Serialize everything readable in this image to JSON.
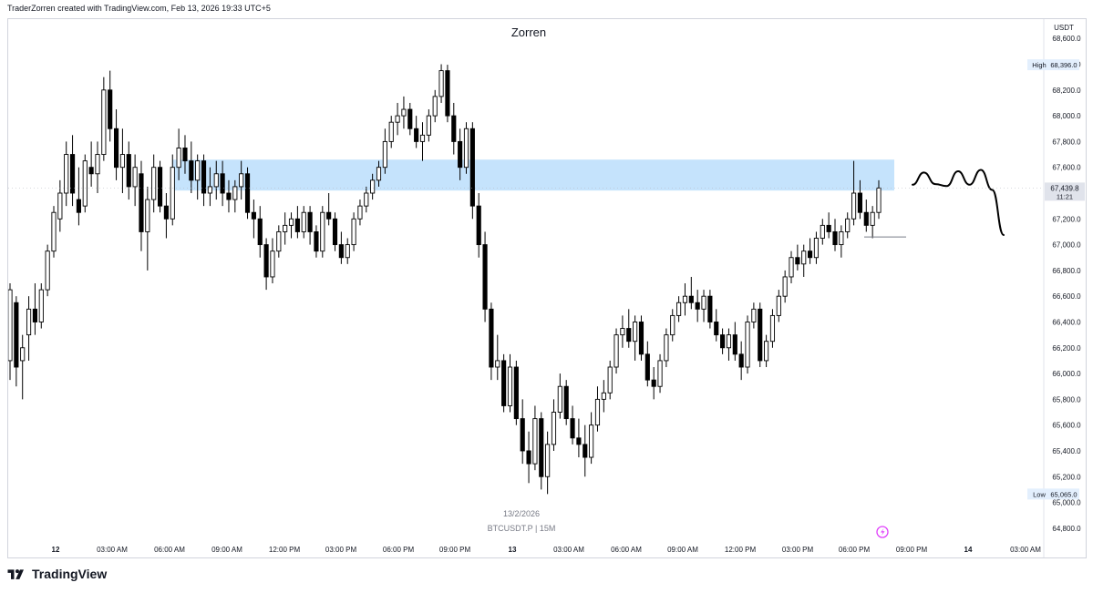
{
  "header": {
    "credit": "TraderZorren created with TradingView.com, Feb 13, 2026 19:33 UTC+5"
  },
  "footer": {
    "logo_icon": "tradingview-logo-icon",
    "brand": "TradingView"
  },
  "chart_data": {
    "type": "candlestick",
    "title": "Zorren",
    "symbol_caption": "BTCUSDT.P | 15M",
    "currency": "USDT",
    "date_label": "13/2/2026",
    "ylim": [
      64700,
      68750
    ],
    "y_ticks": [
      "68,600.0",
      "68,400.0",
      "68,200.0",
      "68,000.0",
      "67,800.0",
      "67,600.0",
      "67,400.0",
      "67,200.0",
      "67,000.0",
      "66,800.0",
      "66,600.0",
      "66,400.0",
      "66,200.0",
      "66,000.0",
      "65,800.0",
      "65,600.0",
      "65,400.0",
      "65,200.0",
      "65,000.0",
      "64,800.0"
    ],
    "x_ticks": [
      "12",
      "03:00 AM",
      "06:00 AM",
      "09:00 AM",
      "12:00 PM",
      "03:00 PM",
      "06:00 PM",
      "09:00 PM",
      "13",
      "03:00 AM",
      "06:00 AM",
      "09:00 AM",
      "12:00 PM",
      "03:00 PM",
      "06:00 PM",
      "09:00 PM",
      "14",
      "03:00 AM"
    ],
    "high_marker": {
      "label": "High",
      "value": "68,396.0",
      "price": 68396
    },
    "low_marker": {
      "label": "Low",
      "value": "65,065.0",
      "price": 65065
    },
    "last_price": {
      "value": "67,439.8",
      "countdown": "11:21",
      "price": 67439.8
    },
    "zone": {
      "from": 67420,
      "to": 67660,
      "color": "#bbdefb"
    },
    "up_color": "#ffffff",
    "down_color": "#000000",
    "grid": false,
    "series_15m_ohlc": [
      [
        66100,
        66700,
        65950,
        66650
      ],
      [
        66550,
        66600,
        65900,
        66050
      ],
      [
        66100,
        66300,
        65800,
        66200
      ],
      [
        66300,
        66600,
        66100,
        66500
      ],
      [
        66500,
        66700,
        66300,
        66400
      ],
      [
        66400,
        66700,
        66350,
        66650
      ],
      [
        66650,
        67000,
        66600,
        66950
      ],
      [
        66950,
        67300,
        66900,
        67250
      ],
      [
        67200,
        67500,
        67100,
        67400
      ],
      [
        67400,
        67800,
        67300,
        67700
      ],
      [
        67700,
        67850,
        67300,
        67400
      ],
      [
        67350,
        67600,
        67150,
        67250
      ],
      [
        67300,
        67700,
        67250,
        67650
      ],
      [
        67600,
        67800,
        67450,
        67550
      ],
      [
        67550,
        67800,
        67400,
        67700
      ],
      [
        67700,
        68300,
        67650,
        68200
      ],
      [
        68200,
        68350,
        67800,
        67900
      ],
      [
        67900,
        68050,
        67500,
        67600
      ],
      [
        67600,
        67900,
        67400,
        67700
      ],
      [
        67700,
        67800,
        67350,
        67450
      ],
      [
        67450,
        67700,
        67300,
        67600
      ],
      [
        67550,
        67650,
        66950,
        67100
      ],
      [
        67100,
        67450,
        66800,
        67350
      ],
      [
        67350,
        67700,
        67250,
        67600
      ],
      [
        67600,
        67650,
        67250,
        67300
      ],
      [
        67300,
        67400,
        67050,
        67200
      ],
      [
        67200,
        67700,
        67150,
        67600
      ],
      [
        67600,
        67900,
        67500,
        67750
      ],
      [
        67750,
        67850,
        67550,
        67650
      ],
      [
        67650,
        67800,
        67400,
        67500
      ],
      [
        67500,
        67700,
        67350,
        67650
      ],
      [
        67650,
        67700,
        67300,
        67400
      ],
      [
        67400,
        67600,
        67300,
        67450
      ],
      [
        67450,
        67650,
        67350,
        67550
      ],
      [
        67550,
        67650,
        67300,
        67400
      ],
      [
        67400,
        67500,
        67250,
        67350
      ],
      [
        67350,
        67500,
        67250,
        67450
      ],
      [
        67450,
        67650,
        67350,
        67550
      ],
      [
        67550,
        67600,
        67200,
        67250
      ],
      [
        67250,
        67350,
        67050,
        67200
      ],
      [
        67200,
        67300,
        66900,
        67000
      ],
      [
        67000,
        67050,
        66650,
        66750
      ],
      [
        66750,
        67050,
        66700,
        66950
      ],
      [
        66950,
        67150,
        66900,
        67100
      ],
      [
        67100,
        67250,
        67000,
        67150
      ],
      [
        67150,
        67250,
        67050,
        67200
      ],
      [
        67200,
        67300,
        67050,
        67100
      ],
      [
        67100,
        67300,
        67050,
        67250
      ],
      [
        67250,
        67300,
        67000,
        67100
      ],
      [
        67100,
        67150,
        66900,
        66950
      ],
      [
        66950,
        67300,
        66900,
        67250
      ],
      [
        67250,
        67400,
        67150,
        67200
      ],
      [
        67200,
        67250,
        66950,
        67000
      ],
      [
        67000,
        67100,
        66850,
        66900
      ],
      [
        66900,
        67050,
        66850,
        67000
      ],
      [
        67000,
        67250,
        66950,
        67200
      ],
      [
        67200,
        67350,
        67150,
        67300
      ],
      [
        67300,
        67450,
        67250,
        67400
      ],
      [
        67400,
        67550,
        67350,
        67500
      ],
      [
        67500,
        67650,
        67450,
        67600
      ],
      [
        67600,
        67900,
        67550,
        67800
      ],
      [
        67800,
        68000,
        67750,
        67950
      ],
      [
        67950,
        68100,
        67850,
        68000
      ],
      [
        68000,
        68150,
        67900,
        68050
      ],
      [
        68050,
        68100,
        67850,
        67900
      ],
      [
        67900,
        68000,
        67750,
        67800
      ],
      [
        67800,
        67950,
        67650,
        67850
      ],
      [
        67850,
        68050,
        67800,
        68000
      ],
      [
        68000,
        68200,
        67950,
        68150
      ],
      [
        68150,
        68400,
        68100,
        68350
      ],
      [
        68350,
        68396,
        67950,
        68000
      ],
      [
        68000,
        68100,
        67700,
        67800
      ],
      [
        67800,
        67900,
        67500,
        67600
      ],
      [
        67600,
        67950,
        67550,
        67900
      ],
      [
        67900,
        67950,
        67200,
        67300
      ],
      [
        67300,
        67400,
        66900,
        67000
      ],
      [
        67000,
        67100,
        66400,
        66500
      ],
      [
        66500,
        66550,
        65950,
        66050
      ],
      [
        66050,
        66300,
        65950,
        66100
      ],
      [
        66100,
        66150,
        65700,
        65750
      ],
      [
        65750,
        66150,
        65700,
        66050
      ],
      [
        66050,
        66100,
        65600,
        65650
      ],
      [
        65650,
        65800,
        65300,
        65400
      ],
      [
        65400,
        65550,
        65150,
        65300
      ],
      [
        65300,
        65750,
        65250,
        65650
      ],
      [
        65650,
        65700,
        65100,
        65200
      ],
      [
        65200,
        65550,
        65065,
        65450
      ],
      [
        65450,
        65800,
        65400,
        65700
      ],
      [
        65700,
        66000,
        65650,
        65900
      ],
      [
        65900,
        65950,
        65600,
        65650
      ],
      [
        65650,
        65750,
        65450,
        65500
      ],
      [
        65500,
        65650,
        65350,
        65450
      ],
      [
        65450,
        65600,
        65200,
        65350
      ],
      [
        65350,
        65700,
        65300,
        65600
      ],
      [
        65600,
        65900,
        65550,
        65800
      ],
      [
        65800,
        65950,
        65700,
        65850
      ],
      [
        65850,
        66100,
        65800,
        66050
      ],
      [
        66050,
        66350,
        66000,
        66300
      ],
      [
        66300,
        66450,
        66200,
        66350
      ],
      [
        66350,
        66500,
        66200,
        66250
      ],
      [
        66250,
        66450,
        66100,
        66400
      ],
      [
        66400,
        66450,
        66100,
        66150
      ],
      [
        66150,
        66250,
        65900,
        65950
      ],
      [
        65950,
        66050,
        65800,
        65900
      ],
      [
        65900,
        66150,
        65850,
        66100
      ],
      [
        66100,
        66350,
        66050,
        66300
      ],
      [
        66300,
        66500,
        66250,
        66450
      ],
      [
        66450,
        66600,
        66400,
        66550
      ],
      [
        66550,
        66700,
        66450,
        66600
      ],
      [
        66600,
        66750,
        66500,
        66550
      ],
      [
        66550,
        66650,
        66400,
        66500
      ],
      [
        66500,
        66650,
        66400,
        66600
      ],
      [
        66600,
        66650,
        66350,
        66400
      ],
      [
        66400,
        66500,
        66250,
        66300
      ],
      [
        66300,
        66350,
        66150,
        66200
      ],
      [
        66200,
        66350,
        66100,
        66300
      ],
      [
        66300,
        66400,
        66100,
        66150
      ],
      [
        66150,
        66250,
        65950,
        66050
      ],
      [
        66050,
        66450,
        66000,
        66400
      ],
      [
        66400,
        66550,
        66350,
        66500
      ],
      [
        66500,
        66550,
        66050,
        66100
      ],
      [
        66100,
        66300,
        66050,
        66250
      ],
      [
        66250,
        66500,
        66200,
        66450
      ],
      [
        66450,
        66650,
        66400,
        66600
      ],
      [
        66600,
        66800,
        66550,
        66750
      ],
      [
        66750,
        66950,
        66700,
        66900
      ],
      [
        66900,
        67000,
        66800,
        66850
      ],
      [
        66850,
        67000,
        66750,
        66950
      ],
      [
        66950,
        67050,
        66850,
        66900
      ],
      [
        66900,
        67100,
        66850,
        67050
      ],
      [
        67050,
        67200,
        67000,
        67150
      ],
      [
        67150,
        67250,
        67050,
        67100
      ],
      [
        67100,
        67200,
        66950,
        67000
      ],
      [
        67000,
        67150,
        66900,
        67100
      ],
      [
        67100,
        67250,
        67050,
        67200
      ],
      [
        67200,
        67650,
        67150,
        67400
      ],
      [
        67400,
        67500,
        67200,
        67250
      ],
      [
        67250,
        67350,
        67100,
        67150
      ],
      [
        67150,
        67300,
        67050,
        67250
      ],
      [
        67250,
        67500,
        67200,
        67439.8
      ]
    ],
    "annotation_path": [
      [
        67450,
        67480
      ],
      [
        67560,
        67560
      ],
      [
        67520,
        67420
      ],
      [
        67460,
        67450
      ],
      [
        67580,
        67560
      ],
      [
        67460,
        67470
      ],
      [
        67560,
        67600
      ],
      [
        67500,
        67350
      ],
      [
        67150,
        67000
      ]
    ]
  }
}
